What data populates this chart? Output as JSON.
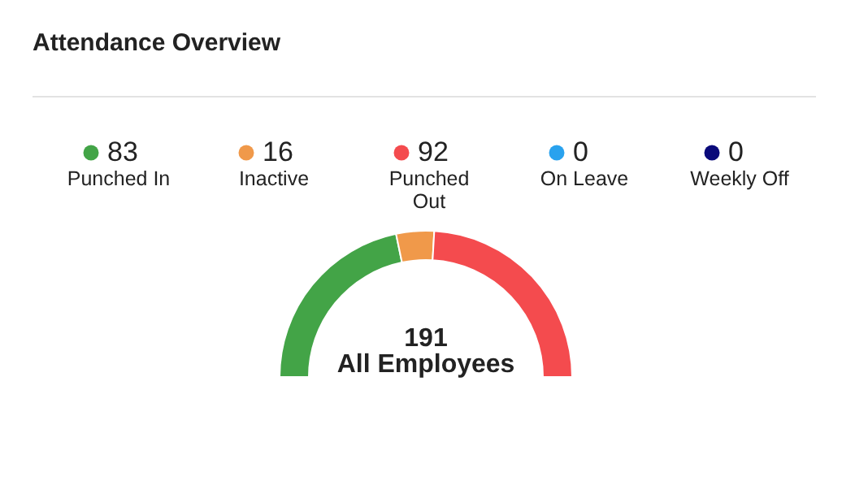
{
  "chart_data": {
    "type": "donut",
    "title": "Attendance Overview",
    "categories": [
      "Punched In",
      "Inactive",
      "Punched Out",
      "On Leave",
      "Weekly Off"
    ],
    "values": [
      83,
      16,
      92,
      0,
      0
    ],
    "colors": [
      "#43a447",
      "#f0994a",
      "#f44b4e",
      "#29a2ee",
      "#0a0a7a"
    ],
    "legend": "top",
    "value_labels": [
      "83",
      "16",
      "92",
      "0",
      "0"
    ],
    "annotations": [
      "191",
      "All Employees"
    ]
  }
}
